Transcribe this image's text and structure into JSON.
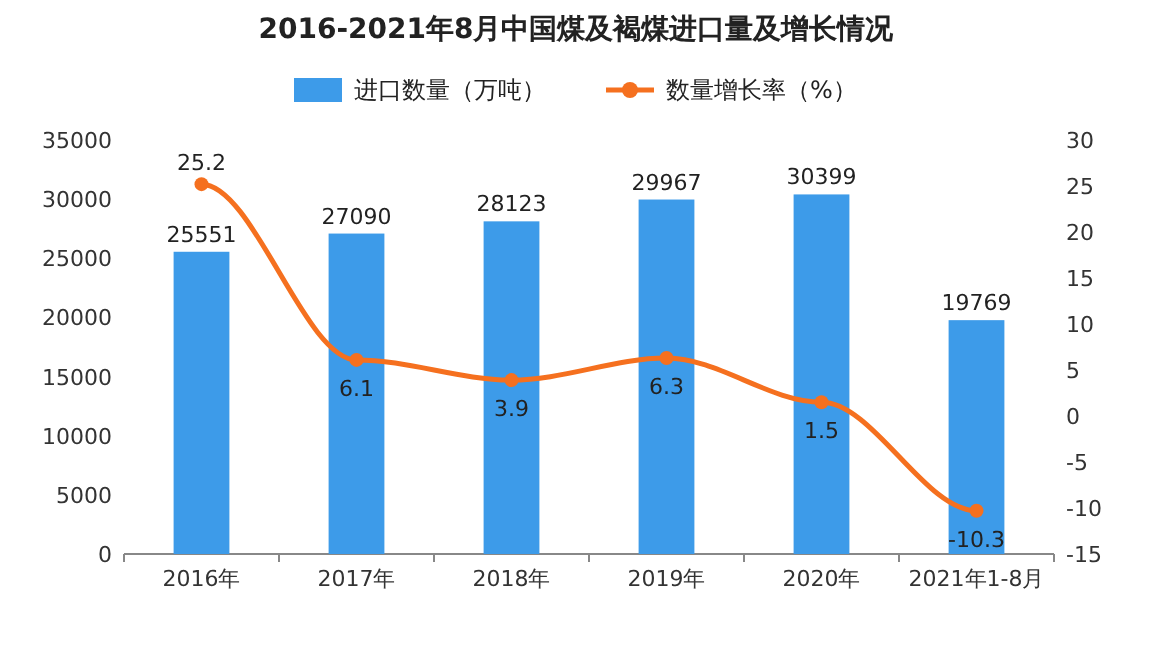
{
  "chart_data": {
    "type": "bar",
    "title": "2016-2021年8月中国煤及褐煤进口量及增长情况",
    "categories": [
      "2016年",
      "2017年",
      "2018年",
      "2019年",
      "2020年",
      "2021年1-8月"
    ],
    "series": [
      {
        "name": "进口数量（万吨）",
        "color": "#3d9be9",
        "values": [
          25551,
          27090,
          28123,
          29967,
          30399,
          19769
        ]
      },
      {
        "name": "数量增长率（%）",
        "type": "line",
        "axis": "y2",
        "color": "#f5701f",
        "values": [
          25.2,
          6.1,
          3.9,
          6.3,
          1.5,
          -10.3
        ]
      }
    ],
    "ylim": [
      0,
      35000
    ],
    "yticks": [
      0,
      5000,
      10000,
      15000,
      20000,
      25000,
      30000,
      35000
    ],
    "y2lim": [
      -15,
      30
    ],
    "y2ticks": [
      -15,
      -10,
      -5,
      0,
      5,
      10,
      15,
      20,
      25,
      30
    ],
    "data_labels": true,
    "legend": "top",
    "marker": "circle"
  }
}
